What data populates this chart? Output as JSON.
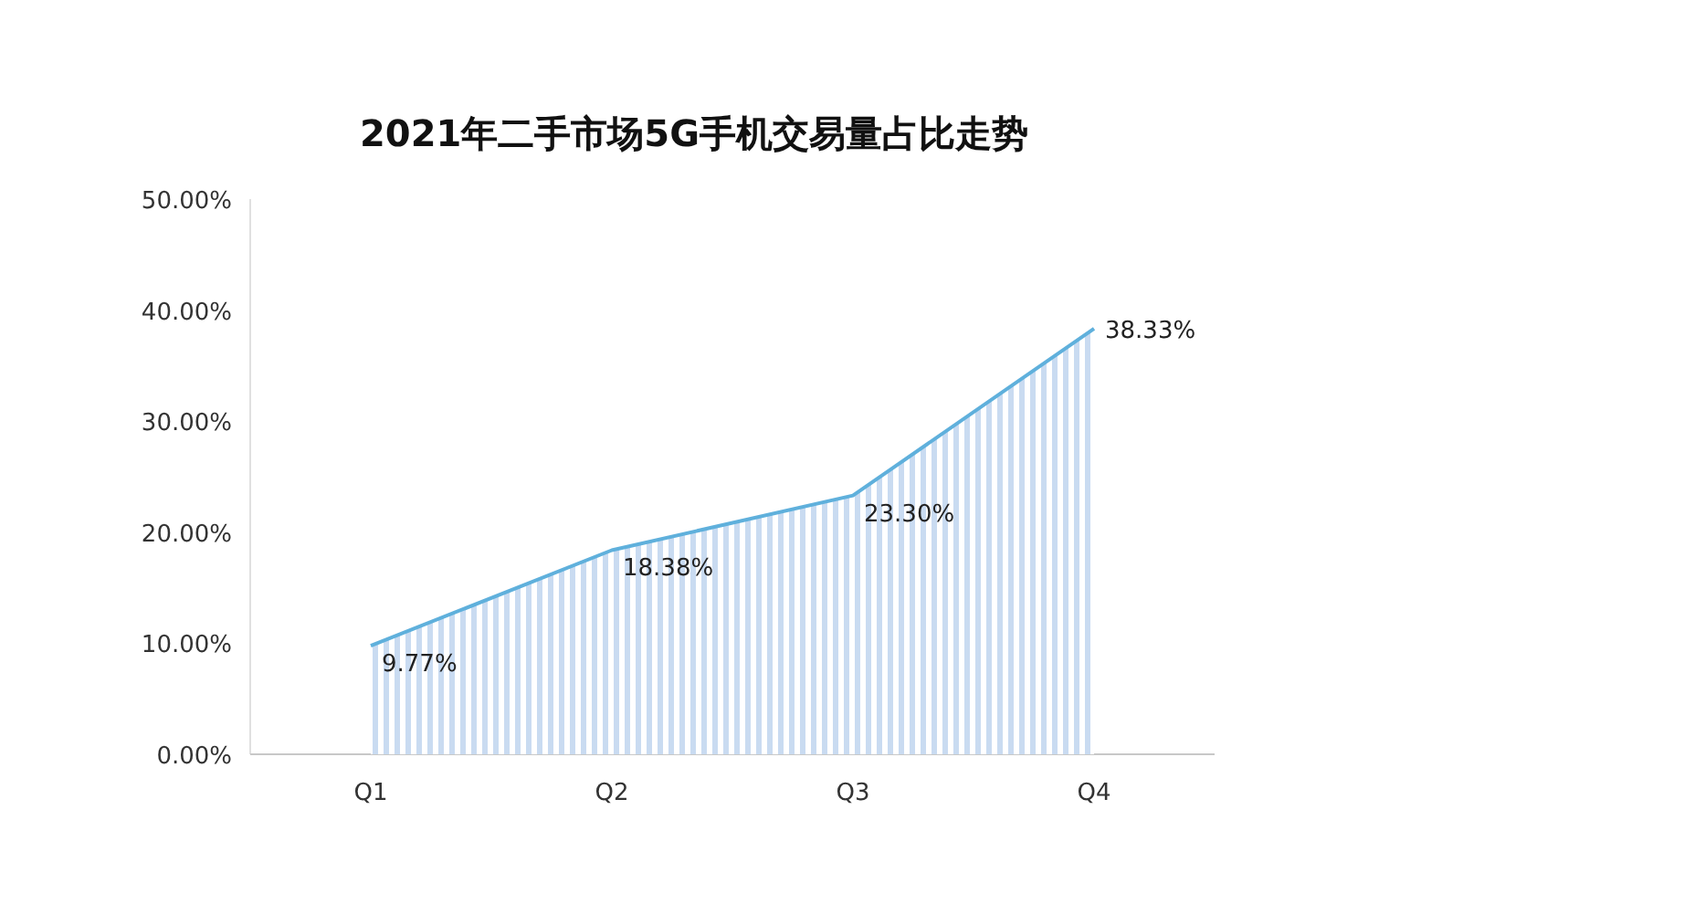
{
  "chart_data": {
    "type": "area",
    "title": "2021年二手市场5G手机交易量占比走势",
    "categories": [
      "Q1",
      "Q2",
      "Q3",
      "Q4"
    ],
    "series": [
      {
        "color": "#5fb0dc",
        "values": [
          9.77,
          18.38,
          23.3,
          38.33
        ],
        "value_labels": [
          "9.77%",
          "18.38%",
          "23.30%",
          "38.33%"
        ]
      }
    ],
    "ylim": [
      0,
      50
    ],
    "yticks": [
      {
        "value": 0,
        "label": "0.00%"
      },
      {
        "value": 10,
        "label": "10.00%"
      },
      {
        "value": 20,
        "label": "20.00%"
      },
      {
        "value": 30,
        "label": "30.00%"
      },
      {
        "value": 40,
        "label": "40.00%"
      },
      {
        "value": 50,
        "label": "50.00%"
      }
    ],
    "grid": false
  }
}
